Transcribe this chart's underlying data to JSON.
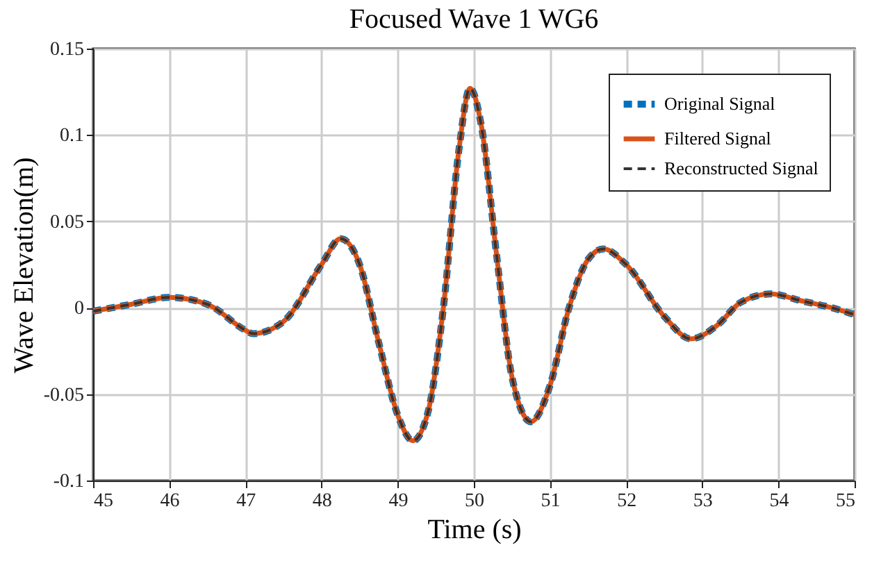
{
  "chart_data": {
    "type": "line",
    "title": "Focused Wave 1 WG6",
    "xlabel": "Time (s)",
    "ylabel": "Wave Elevation(m)",
    "x": [
      45.0,
      45.5,
      46.0,
      46.5,
      47.0,
      47.1,
      47.5,
      48.0,
      48.25,
      48.5,
      48.75,
      49.0,
      49.2,
      49.4,
      49.6,
      49.8,
      49.95,
      50.1,
      50.3,
      50.5,
      50.75,
      51.0,
      51.25,
      51.5,
      51.7,
      52.0,
      52.5,
      52.85,
      53.2,
      53.5,
      53.9,
      54.3,
      54.7,
      55.0
    ],
    "series": [
      {
        "name": "Original Signal",
        "color": "#0072bd",
        "line_style": "dashed",
        "values": [
          -0.002,
          0.002,
          0.006,
          0.002,
          -0.013,
          -0.015,
          -0.008,
          0.025,
          0.04,
          0.025,
          -0.02,
          -0.062,
          -0.077,
          -0.06,
          0.0,
          0.09,
          0.127,
          0.105,
          0.03,
          -0.04,
          -0.066,
          -0.045,
          0.0,
          0.028,
          0.034,
          0.025,
          -0.005,
          -0.018,
          -0.01,
          0.003,
          0.008,
          0.004,
          0.0,
          -0.004
        ]
      },
      {
        "name": "Filtered Signal",
        "color": "#d95319",
        "line_style": "solid",
        "values": [
          -0.002,
          0.002,
          0.006,
          0.002,
          -0.013,
          -0.015,
          -0.008,
          0.025,
          0.04,
          0.025,
          -0.02,
          -0.062,
          -0.077,
          -0.06,
          0.0,
          0.09,
          0.127,
          0.105,
          0.03,
          -0.04,
          -0.066,
          -0.045,
          0.0,
          0.028,
          0.034,
          0.025,
          -0.005,
          -0.018,
          -0.01,
          0.003,
          0.008,
          0.004,
          0.0,
          -0.004
        ]
      },
      {
        "name": "Reconstructed Signal",
        "color": "#333333",
        "line_style": "dashed",
        "values": [
          -0.002,
          0.002,
          0.006,
          0.002,
          -0.013,
          -0.015,
          -0.008,
          0.025,
          0.04,
          0.025,
          -0.02,
          -0.062,
          -0.077,
          -0.06,
          0.0,
          0.09,
          0.127,
          0.105,
          0.03,
          -0.04,
          -0.066,
          -0.045,
          0.0,
          0.028,
          0.034,
          0.025,
          -0.005,
          -0.018,
          -0.01,
          0.003,
          0.008,
          0.004,
          0.0,
          -0.004
        ]
      }
    ],
    "xlim": [
      45,
      55
    ],
    "xticks": [
      45,
      46,
      47,
      48,
      49,
      50,
      51,
      52,
      53,
      54,
      55
    ],
    "ylim": [
      -0.1,
      0.15
    ],
    "yticks": [
      -0.1,
      -0.05,
      0,
      0.05,
      0.1,
      0.15
    ],
    "grid": true,
    "legend": "top right"
  }
}
